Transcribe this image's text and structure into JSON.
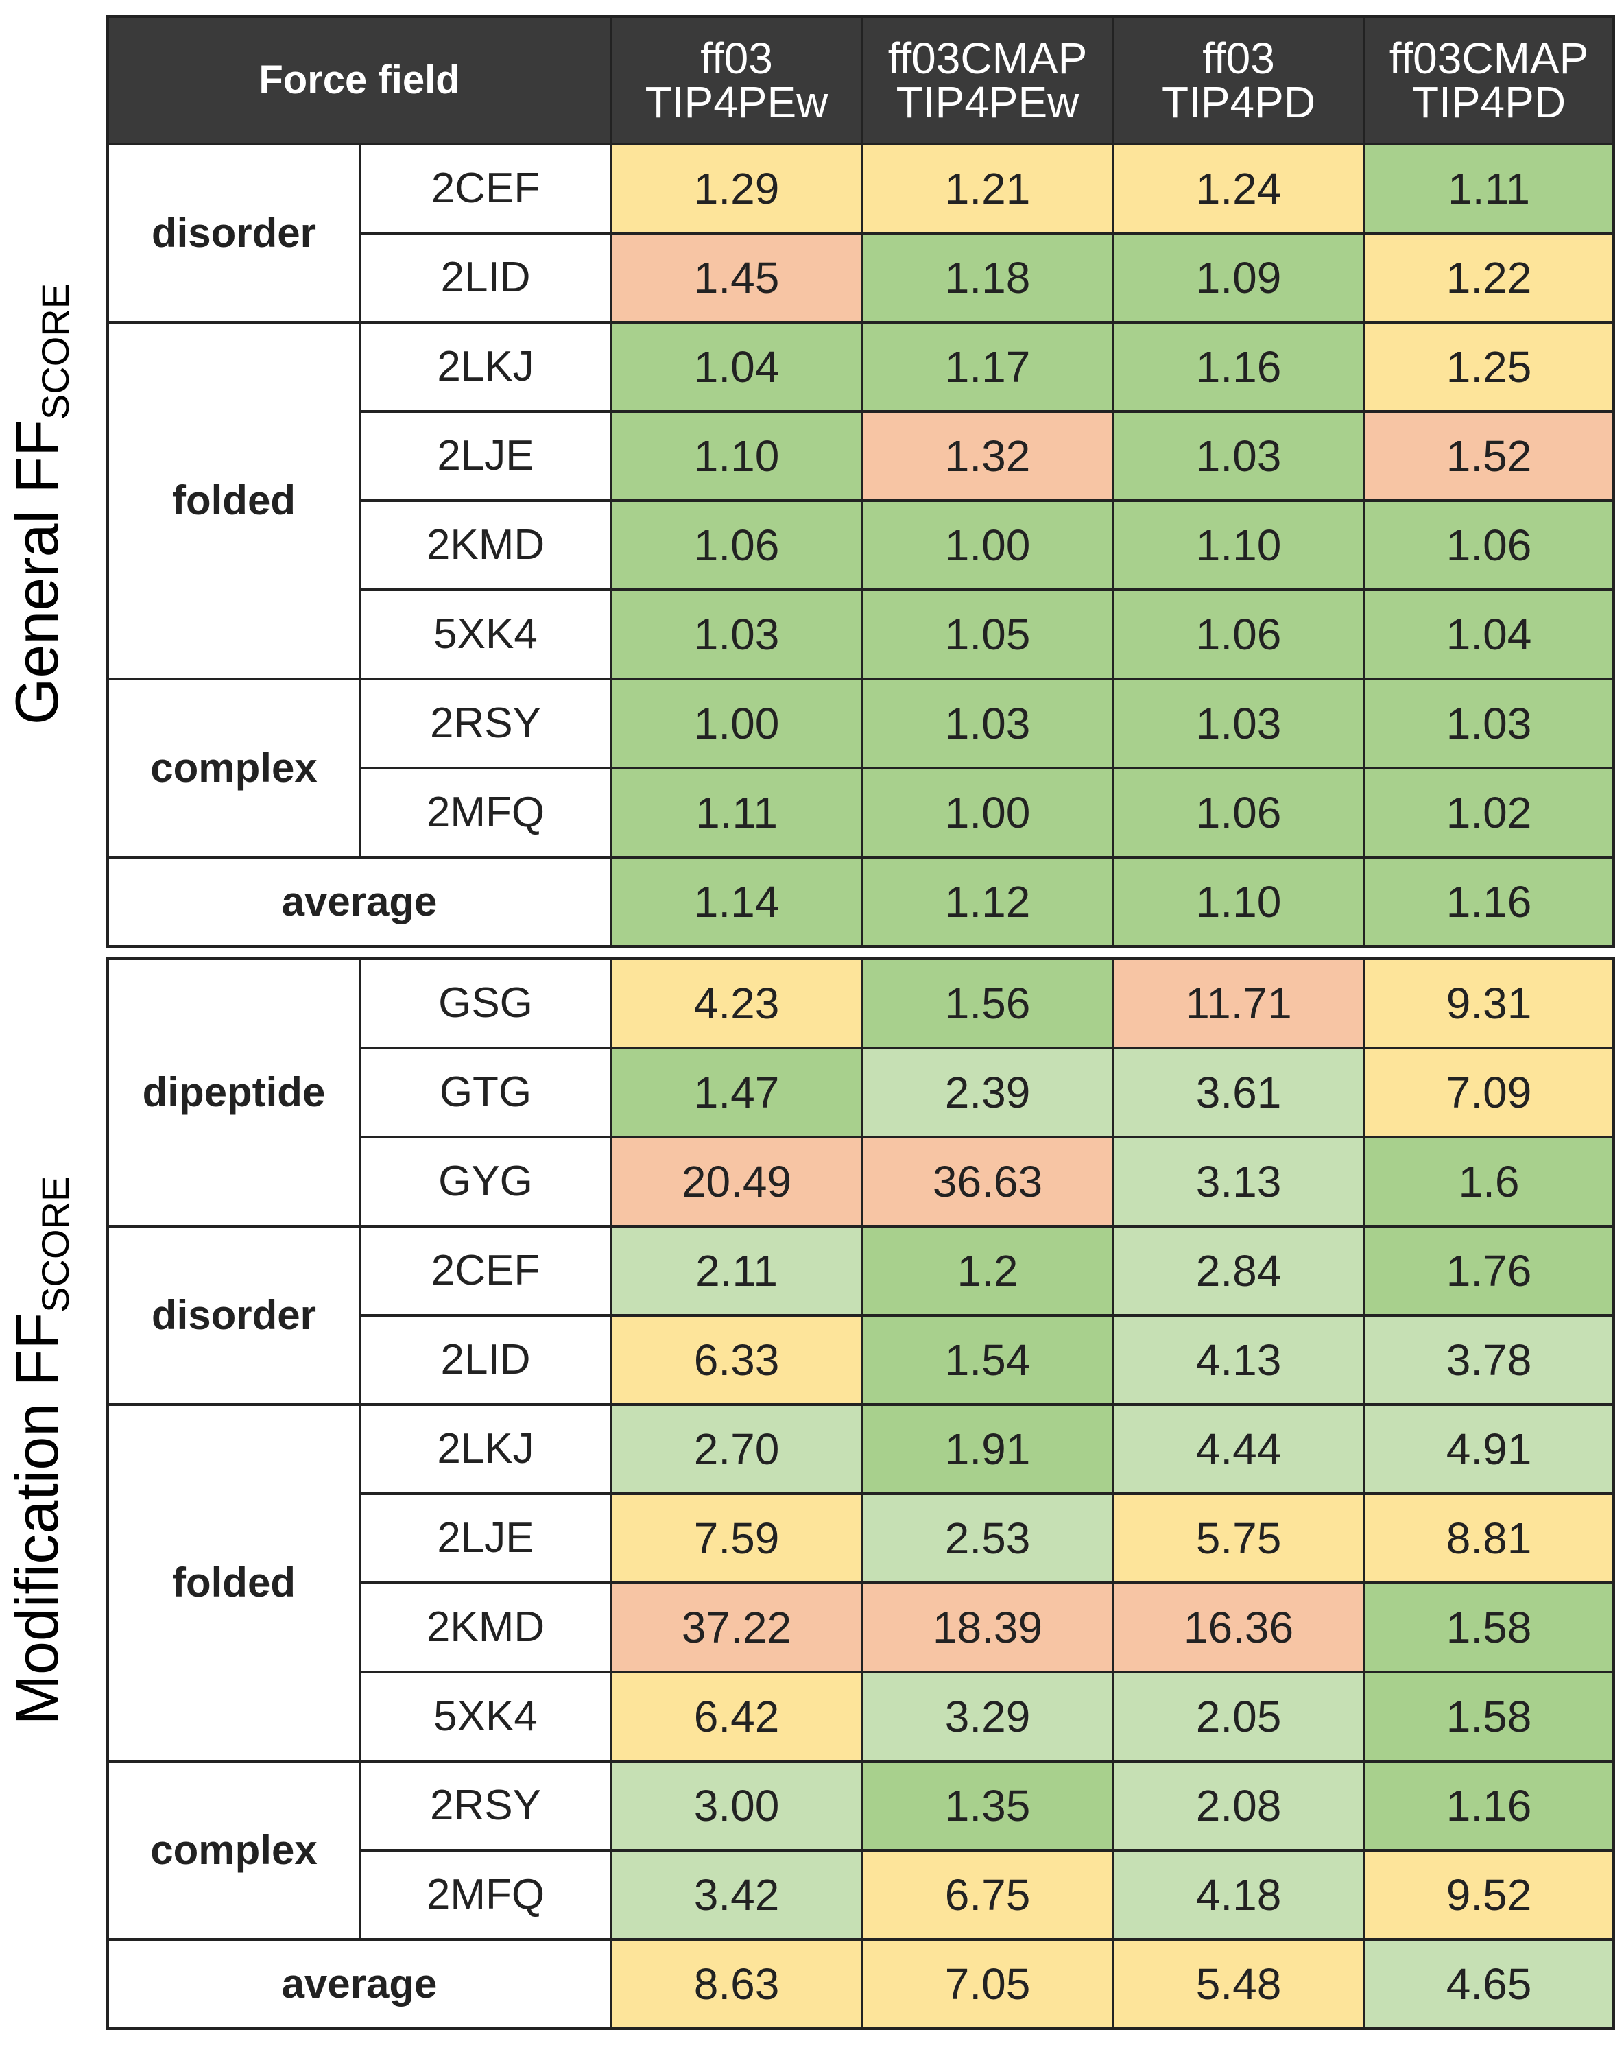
{
  "header": {
    "force_field_label": "Force field",
    "columns": [
      {
        "line1": "ff03",
        "line2": "TIP4PEw"
      },
      {
        "line1": "ff03CMAP",
        "line2": "TIP4PEw"
      },
      {
        "line1": "ff03",
        "line2": "TIP4PD"
      },
      {
        "line1": "ff03CMAP",
        "line2": "TIP4PD"
      }
    ]
  },
  "legend_colors": {
    "yellow": "#fde49a",
    "green": "#a8d08d",
    "light_green": "#c6e0b4",
    "salmon": "#f7c5a4",
    "header_bg": "#3a3a3a"
  },
  "chart_data": {
    "type": "table",
    "sections": [
      {
        "label_main": "General FF",
        "label_sub": "SCORE",
        "groups": [
          {
            "category": "disorder",
            "rows": [
              {
                "id": "2CEF",
                "values": [
                  "1.29",
                  "1.21",
                  "1.24",
                  "1.11"
                ],
                "colors": [
                  "y",
                  "y",
                  "y",
                  "g"
                ]
              },
              {
                "id": "2LID",
                "values": [
                  "1.45",
                  "1.18",
                  "1.09",
                  "1.22"
                ],
                "colors": [
                  "r",
                  "g",
                  "g",
                  "y"
                ]
              }
            ]
          },
          {
            "category": "folded",
            "rows": [
              {
                "id": "2LKJ",
                "values": [
                  "1.04",
                  "1.17",
                  "1.16",
                  "1.25"
                ],
                "colors": [
                  "g",
                  "g",
                  "g",
                  "y"
                ]
              },
              {
                "id": "2LJE",
                "values": [
                  "1.10",
                  "1.32",
                  "1.03",
                  "1.52"
                ],
                "colors": [
                  "g",
                  "r",
                  "g",
                  "r"
                ]
              },
              {
                "id": "2KMD",
                "values": [
                  "1.06",
                  "1.00",
                  "1.10",
                  "1.06"
                ],
                "colors": [
                  "g",
                  "g",
                  "g",
                  "g"
                ]
              },
              {
                "id": "5XK4",
                "values": [
                  "1.03",
                  "1.05",
                  "1.06",
                  "1.04"
                ],
                "colors": [
                  "g",
                  "g",
                  "g",
                  "g"
                ]
              }
            ]
          },
          {
            "category": "complex",
            "rows": [
              {
                "id": "2RSY",
                "values": [
                  "1.00",
                  "1.03",
                  "1.03",
                  "1.03"
                ],
                "colors": [
                  "g",
                  "g",
                  "g",
                  "g"
                ]
              },
              {
                "id": "2MFQ",
                "values": [
                  "1.11",
                  "1.00",
                  "1.06",
                  "1.02"
                ],
                "colors": [
                  "g",
                  "g",
                  "g",
                  "g"
                ]
              }
            ]
          }
        ],
        "average": {
          "label": "average",
          "values": [
            "1.14",
            "1.12",
            "1.10",
            "1.16"
          ],
          "colors": [
            "g",
            "g",
            "g",
            "g"
          ]
        }
      },
      {
        "label_main": "Modification FF",
        "label_sub": "SCORE",
        "groups": [
          {
            "category": "dipeptide",
            "rows": [
              {
                "id": "GSG",
                "values": [
                  "4.23",
                  "1.56",
                  "11.71",
                  "9.31"
                ],
                "colors": [
                  "y",
                  "g",
                  "r",
                  "y"
                ]
              },
              {
                "id": "GTG",
                "values": [
                  "1.47",
                  "2.39",
                  "3.61",
                  "7.09"
                ],
                "colors": [
                  "g",
                  "l",
                  "l",
                  "y"
                ]
              },
              {
                "id": "GYG",
                "values": [
                  "20.49",
                  "36.63",
                  "3.13",
                  "1.6"
                ],
                "colors": [
                  "r",
                  "r",
                  "l",
                  "g"
                ]
              }
            ]
          },
          {
            "category": "disorder",
            "rows": [
              {
                "id": "2CEF",
                "values": [
                  "2.11",
                  "1.2",
                  "2.84",
                  "1.76"
                ],
                "colors": [
                  "l",
                  "g",
                  "l",
                  "g"
                ]
              },
              {
                "id": "2LID",
                "values": [
                  "6.33",
                  "1.54",
                  "4.13",
                  "3.78"
                ],
                "colors": [
                  "y",
                  "g",
                  "l",
                  "l"
                ]
              }
            ]
          },
          {
            "category": "folded",
            "rows": [
              {
                "id": "2LKJ",
                "values": [
                  "2.70",
                  "1.91",
                  "4.44",
                  "4.91"
                ],
                "colors": [
                  "l",
                  "g",
                  "l",
                  "l"
                ]
              },
              {
                "id": "2LJE",
                "values": [
                  "7.59",
                  "2.53",
                  "5.75",
                  "8.81"
                ],
                "colors": [
                  "y",
                  "l",
                  "y",
                  "y"
                ]
              },
              {
                "id": "2KMD",
                "values": [
                  "37.22",
                  "18.39",
                  "16.36",
                  "1.58"
                ],
                "colors": [
                  "r",
                  "r",
                  "r",
                  "g"
                ]
              },
              {
                "id": "5XK4",
                "values": [
                  "6.42",
                  "3.29",
                  "2.05",
                  "1.58"
                ],
                "colors": [
                  "y",
                  "l",
                  "l",
                  "g"
                ]
              }
            ]
          },
          {
            "category": "complex",
            "rows": [
              {
                "id": "2RSY",
                "values": [
                  "3.00",
                  "1.35",
                  "2.08",
                  "1.16"
                ],
                "colors": [
                  "l",
                  "g",
                  "l",
                  "g"
                ]
              },
              {
                "id": "2MFQ",
                "values": [
                  "3.42",
                  "6.75",
                  "4.18",
                  "9.52"
                ],
                "colors": [
                  "l",
                  "y",
                  "l",
                  "y"
                ]
              }
            ]
          }
        ],
        "average": {
          "label": "average",
          "values": [
            "8.63",
            "7.05",
            "5.48",
            "4.65"
          ],
          "colors": [
            "y",
            "y",
            "y",
            "l"
          ]
        }
      }
    ]
  }
}
